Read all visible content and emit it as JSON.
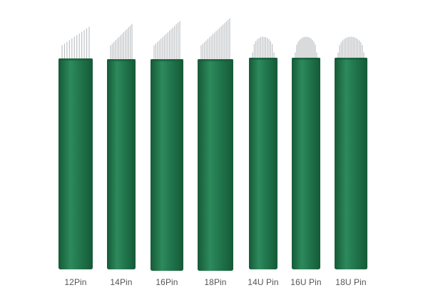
{
  "product": {
    "body_color": "#1e7048",
    "body_shadow_color": "#155a37",
    "body_highlight_color": "#2d8a5c",
    "needle_color": "#b9bcbf"
  },
  "blades": [
    {
      "label": "12Pin",
      "type": "slanted",
      "pins": 12
    },
    {
      "label": "14Pin",
      "type": "slanted",
      "pins": 14
    },
    {
      "label": "16Pin",
      "type": "slanted",
      "pins": 16
    },
    {
      "label": "18Pin",
      "type": "slanted",
      "pins": 18
    },
    {
      "label": "14U Pin",
      "type": "u-shape",
      "pins": 14
    },
    {
      "label": "16U Pin",
      "type": "u-shape",
      "pins": 16
    },
    {
      "label": "18U Pin",
      "type": "u-shape",
      "pins": 18
    }
  ]
}
